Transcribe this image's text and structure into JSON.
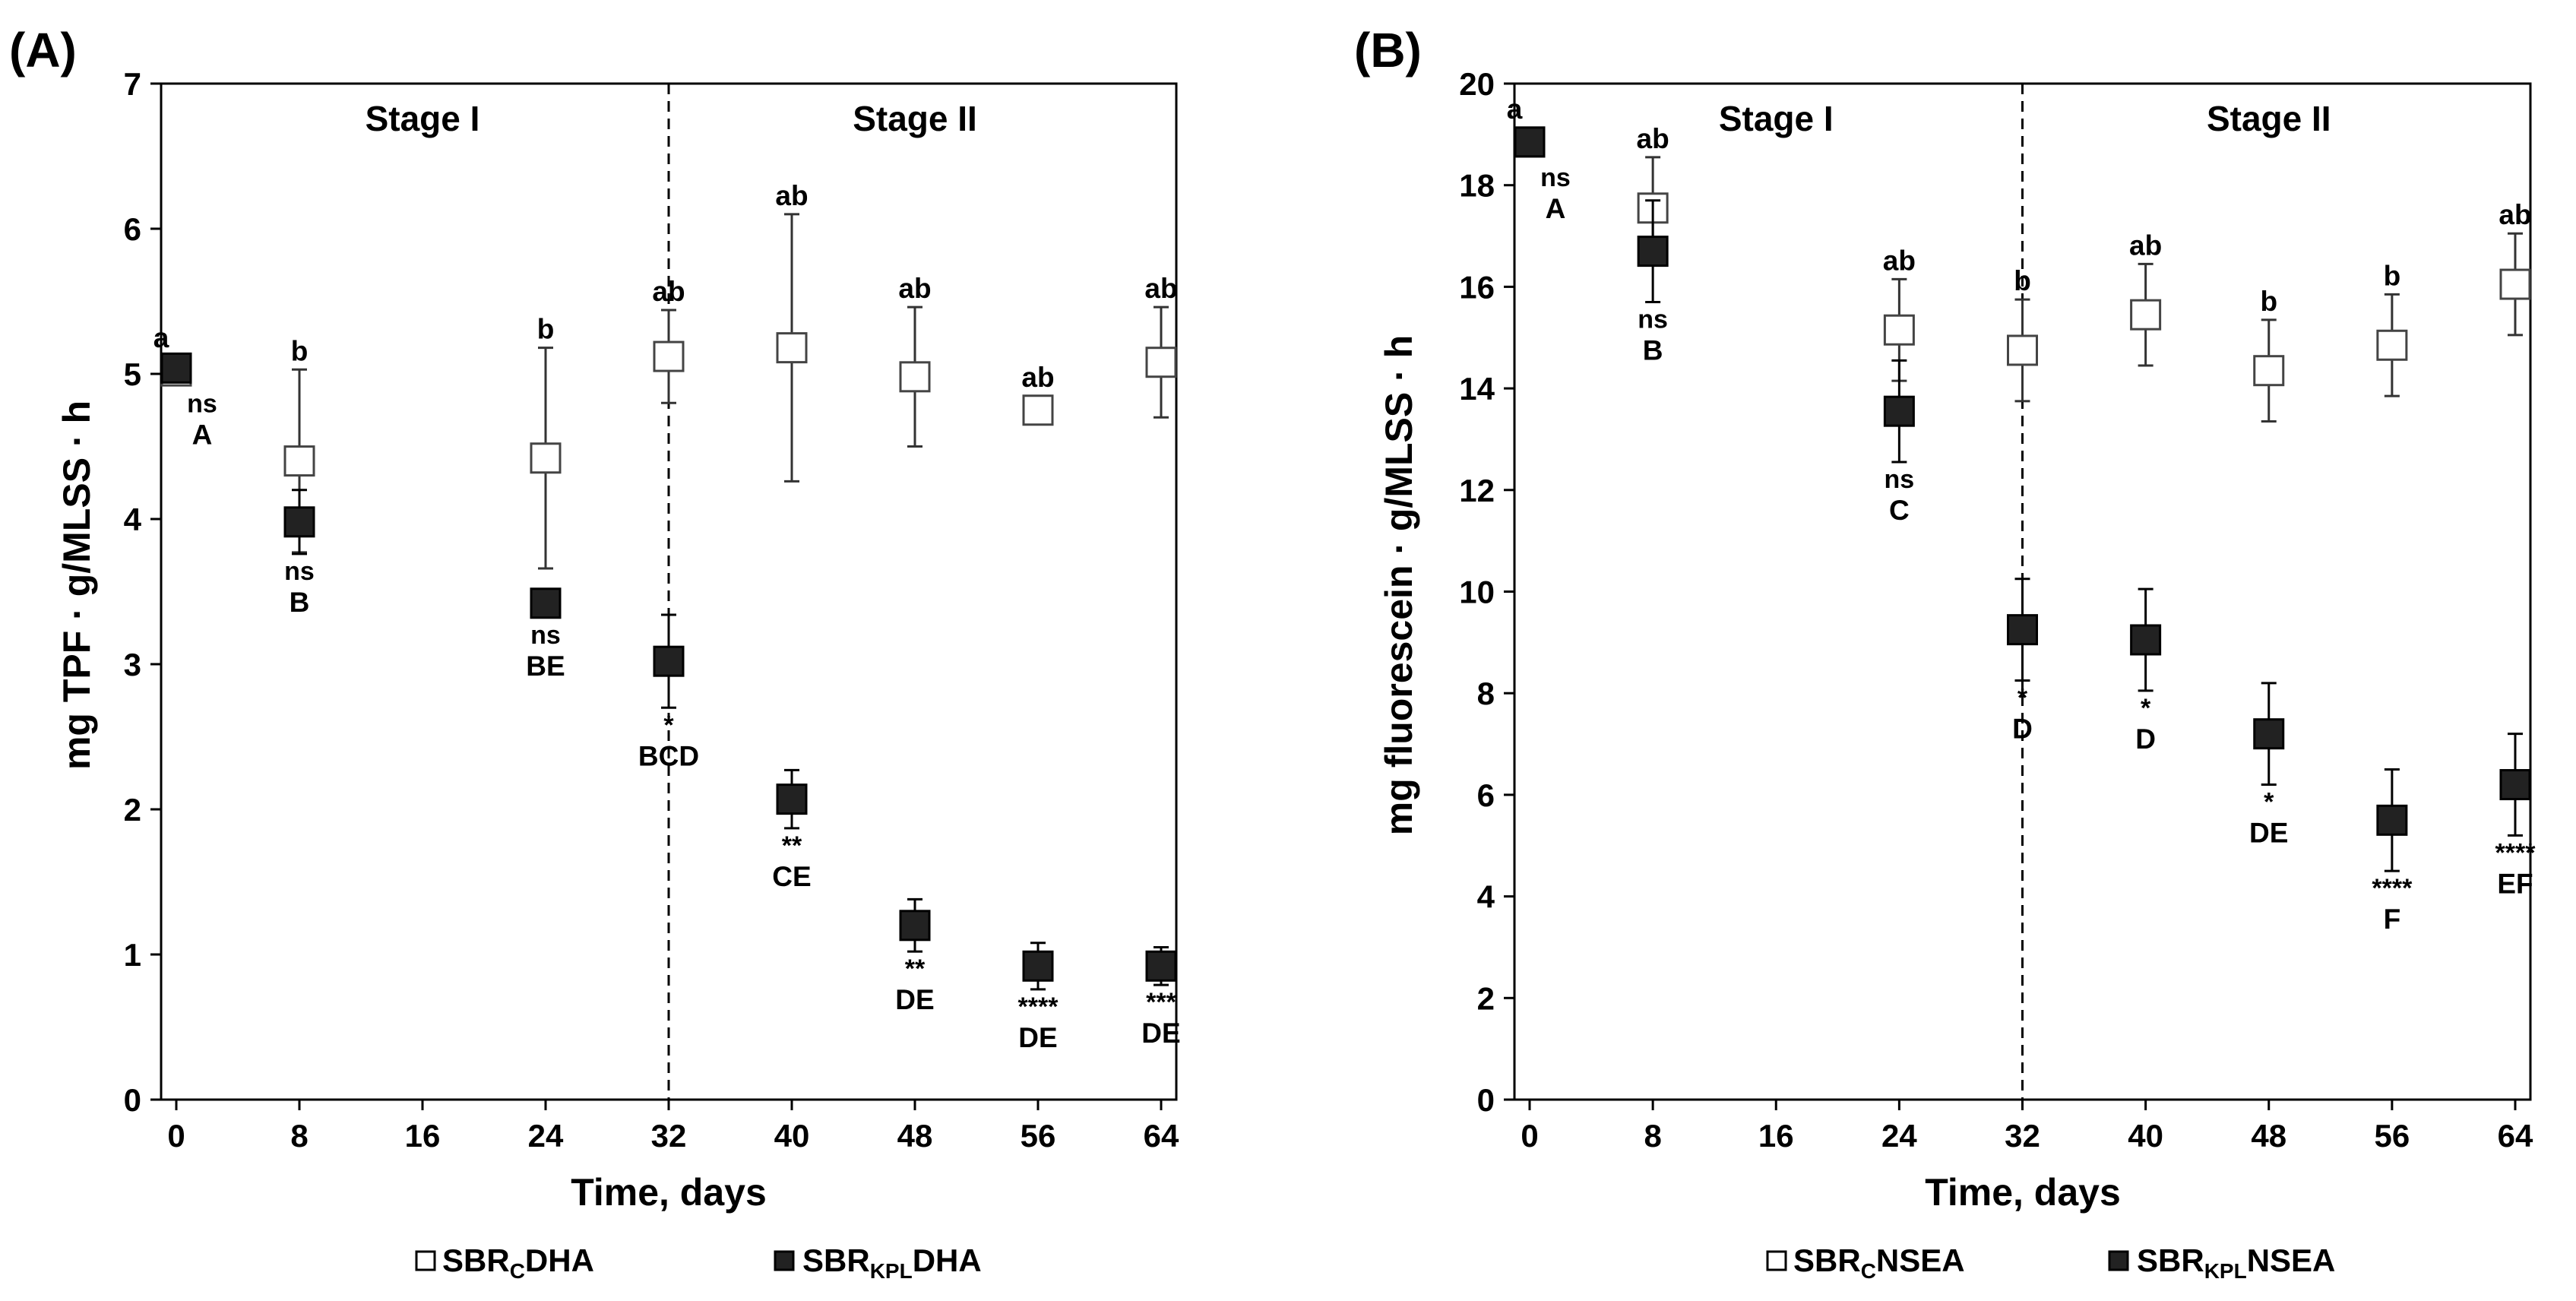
{
  "chart_data": [
    {
      "panel_label": "(A)",
      "type": "scatter",
      "xlabel": "Time, days",
      "ylabel": "mg TPF · g/MLSS · h",
      "xlim": [
        0,
        64
      ],
      "ylim": [
        0,
        7
      ],
      "xticks": [
        0,
        8,
        16,
        24,
        32,
        40,
        48,
        56,
        64
      ],
      "yticks": [
        0,
        1,
        2,
        3,
        4,
        5,
        6,
        7
      ],
      "divider_x": 32,
      "stages": [
        {
          "label": "Stage I",
          "at_x": 16
        },
        {
          "label": "Stage II",
          "at_x": 48
        }
      ],
      "series": [
        {
          "name": "SBRCDHA",
          "legend": {
            "prefix": "SBR",
            "sub": "C",
            "suffix": "DHA"
          },
          "marker": "open-square",
          "x": [
            0,
            8,
            24,
            32,
            40,
            48,
            56,
            64
          ],
          "y": [
            5.02,
            4.4,
            4.42,
            5.12,
            5.18,
            4.98,
            4.75,
            5.08
          ],
          "err": [
            0.0,
            0.63,
            0.76,
            0.32,
            0.92,
            0.48,
            0.0,
            0.38
          ],
          "letters": [
            "a",
            "b",
            "b",
            "ab",
            "ab",
            "ab",
            "ab",
            "ab"
          ]
        },
        {
          "name": "SBRKPLDHA",
          "legend": {
            "prefix": "SBR",
            "sub": "KPL",
            "suffix": "DHA"
          },
          "marker": "filled-square",
          "x": [
            0,
            8,
            24,
            32,
            40,
            48,
            56,
            64
          ],
          "y": [
            5.04,
            3.98,
            3.42,
            3.02,
            2.07,
            1.2,
            0.92,
            0.92
          ],
          "err": [
            0.0,
            0.22,
            0.0,
            0.32,
            0.2,
            0.18,
            0.16,
            0.13
          ],
          "sig": [
            "ns",
            "ns",
            "ns",
            "*",
            "**",
            "**",
            "****",
            "***"
          ],
          "letters": [
            "A",
            "B",
            "BE",
            "BCD",
            "CE",
            "DE",
            "DE",
            "DE"
          ]
        }
      ]
    },
    {
      "panel_label": "(B)",
      "type": "scatter",
      "xlabel": "Time, days",
      "ylabel": "mg fluorescein · g/MLSS · h",
      "xlim": [
        0,
        64
      ],
      "ylim": [
        0,
        20
      ],
      "xticks": [
        0,
        8,
        16,
        24,
        32,
        40,
        48,
        56,
        64
      ],
      "yticks": [
        0,
        2,
        4,
        6,
        8,
        10,
        12,
        14,
        16,
        18,
        20
      ],
      "divider_x": 32,
      "stages": [
        {
          "label": "Stage I",
          "at_x": 16
        },
        {
          "label": "Stage II",
          "at_x": 48
        }
      ],
      "series": [
        {
          "name": "SBRCNSEA",
          "legend": {
            "prefix": "SBR",
            "sub": "C",
            "suffix": "NSEA"
          },
          "marker": "open-square",
          "x": [
            0,
            8,
            24,
            32,
            40,
            48,
            56,
            64
          ],
          "y": [
            18.85,
            17.55,
            15.15,
            14.75,
            15.45,
            14.35,
            14.85,
            16.05
          ],
          "err": [
            0.0,
            1.0,
            1.0,
            1.0,
            1.0,
            1.0,
            1.0,
            1.0
          ],
          "letters": [
            "a",
            "ab",
            "ab",
            "b",
            "ab",
            "b",
            "b",
            "ab"
          ]
        },
        {
          "name": "SBRKPLNSEA",
          "legend": {
            "prefix": "SBR",
            "sub": "KPL",
            "suffix": "NSEA"
          },
          "marker": "filled-square",
          "x": [
            0,
            8,
            24,
            32,
            40,
            48,
            56,
            64
          ],
          "y": [
            18.85,
            16.7,
            13.55,
            9.25,
            9.05,
            7.2,
            5.5,
            6.2
          ],
          "err": [
            0.0,
            1.0,
            1.0,
            1.0,
            1.0,
            1.0,
            1.0,
            1.0
          ],
          "sig": [
            "ns",
            "ns",
            "ns",
            "*",
            "*",
            "*",
            "****",
            "****"
          ],
          "letters": [
            "A",
            "B",
            "C",
            "D",
            "D",
            "DE",
            "F",
            "EF"
          ]
        }
      ]
    }
  ]
}
